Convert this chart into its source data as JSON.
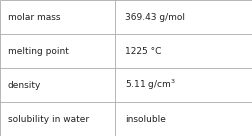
{
  "rows": [
    {
      "label": "molar mass",
      "value": "369.43 g/mol",
      "value_math": false
    },
    {
      "label": "melting point",
      "value": "1225 °C",
      "value_math": false
    },
    {
      "label": "density",
      "value": "5.11 g/cm$^3$",
      "value_math": true
    },
    {
      "label": "solubility in water",
      "value": "insoluble",
      "value_math": false
    }
  ],
  "bg_color": "#ffffff",
  "border_color": "#aaaaaa",
  "text_color": "#222222",
  "label_fontsize": 6.5,
  "value_fontsize": 6.5,
  "col_split": 0.455,
  "fig_width": 2.52,
  "fig_height": 1.36,
  "dpi": 100
}
